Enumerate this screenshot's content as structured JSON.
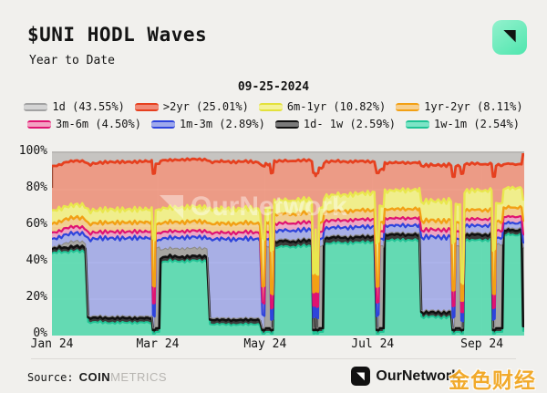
{
  "header": {
    "title": "$UNI HODL Waves",
    "subtitle": "Year to Date"
  },
  "date_label": "09-25-2024",
  "legend": {
    "rows": [
      [
        {
          "key": "1d",
          "label": "1d (43.55%)",
          "line": "#a2a2a2",
          "fill": "#d4d4d4"
        },
        {
          "key": "gt2yr",
          "label": ">2yr (25.01%)",
          "line": "#e6401f",
          "fill": "#f08a77"
        },
        {
          "key": "6m-1yr",
          "label": "6m-1yr (10.82%)",
          "line": "#e3e13c",
          "fill": "#f4f29a"
        },
        {
          "key": "1yr-2yr",
          "label": "1yr-2yr (8.11%)",
          "line": "#f2a014",
          "fill": "#f7cf8e"
        }
      ],
      [
        {
          "key": "3m-6m",
          "label": "3m-6m (4.50%)",
          "line": "#e01371",
          "fill": "#f3a2c2"
        },
        {
          "key": "1m-3m",
          "label": "1m-3m (2.89%)",
          "line": "#2e44dc",
          "fill": "#9fa9ec"
        },
        {
          "key": "1d-1w",
          "label": "1d- 1w (2.59%)",
          "line": "#111111",
          "fill": "#7a7a7a"
        },
        {
          "key": "1w-1m",
          "label": "1w-1m (2.54%)",
          "line": "#1fc394",
          "fill": "#7de4c6"
        }
      ]
    ]
  },
  "chart_data": {
    "type": "area",
    "stacked": true,
    "title": "$UNI HODL Waves",
    "subtitle": "Year to Date",
    "as_of_date": "09-25-2024",
    "watermark": "OurNetwork",
    "x_range": [
      0,
      268
    ],
    "y_range": [
      0,
      100
    ],
    "x_ticks": [
      {
        "day": 0,
        "label": "Jan 24"
      },
      {
        "day": 60,
        "label": "Mar 24"
      },
      {
        "day": 121,
        "label": "May 24"
      },
      {
        "day": 182,
        "label": "Jul 24"
      },
      {
        "day": 244,
        "label": "Sep 24"
      }
    ],
    "y_ticks": [
      {
        "pct": 0,
        "label": "0%"
      },
      {
        "pct": 20,
        "label": "20%"
      },
      {
        "pct": 40,
        "label": "40%"
      },
      {
        "pct": 60,
        "label": "60%"
      },
      {
        "pct": 80,
        "label": "80%"
      },
      {
        "pct": 100,
        "label": "100%"
      }
    ],
    "background_top_band_color": "#c6c4c1",
    "series": [
      {
        "key": "1w-1m",
        "label": "1w-1m",
        "pct_current": 2.54,
        "line": "#22c496",
        "fill": "#55d8ad",
        "fill_opacity": 0.9,
        "line_width": 2
      },
      {
        "key": "1d-1w",
        "label": "1d- 1w",
        "pct_current": 2.59,
        "line": "#101010",
        "fill": "#2d2d2d",
        "fill_opacity": 0.92,
        "line_width": 2.6
      },
      {
        "key": "1d",
        "label": "1d",
        "pct_current": 43.55,
        "line": "#8b8986",
        "fill": "#a09e9b",
        "fill_opacity": 0.92,
        "line_width": 1
      },
      {
        "key": "1m-3m",
        "label": "1m-3m",
        "pct_current": 2.89,
        "line": "#2e44dc",
        "fill": "#4a5ce4",
        "fill_opacity": 0.42,
        "line_width": 2.2
      },
      {
        "key": "3m-6m",
        "label": "3m-6m",
        "pct_current": 4.5,
        "line": "#e01371",
        "fill": "#ea3c8e",
        "fill_opacity": 0.38,
        "line_width": 2.2
      },
      {
        "key": "1yr-2yr",
        "label": "1yr-2yr",
        "pct_current": 8.11,
        "line": "#f2a014",
        "fill": "#f5b13c",
        "fill_opacity": 0.5,
        "line_width": 2.4
      },
      {
        "key": "6m-1yr",
        "label": "6m-1yr",
        "pct_current": 10.82,
        "line": "#e9e74e",
        "fill": "#f1ef6e",
        "fill_opacity": 0.75,
        "line_width": 2.4
      },
      {
        "key": ">2yr",
        "label": ">2yr",
        "pct_current": 25.01,
        "line": "#e6401f",
        "fill": "#ec6a4b",
        "fill_opacity": 0.62,
        "line_width": 2.8
      }
    ],
    "columns": [
      "day",
      "1w-1m",
      "1d-1w",
      "1d",
      "1m-3m",
      "3m-6m",
      "1yr-2yr",
      "6m-1yr",
      ">2yr"
    ],
    "samples": [
      [
        0,
        45.0,
        2.5,
        0.8,
        4.5,
        3.5,
        5.0,
        7.0,
        24.5
      ],
      [
        4,
        46.0,
        2.6,
        0.8,
        4.3,
        3.4,
        5.1,
        7.2,
        24.0
      ],
      [
        8,
        45.5,
        2.4,
        2.8,
        4.6,
        3.6,
        4.9,
        6.8,
        24.5
      ],
      [
        13,
        46.5,
        2.5,
        3.0,
        4.4,
        3.5,
        5.0,
        7.0,
        24.0
      ],
      [
        19,
        45.8,
        2.6,
        2.6,
        4.5,
        3.4,
        5.2,
        7.1,
        24.2
      ],
      [
        20.5,
        7.0,
        2.5,
        1.0,
        42.0,
        3.5,
        5.0,
        7.2,
        25.5
      ],
      [
        26,
        7.5,
        2.4,
        1.0,
        42.5,
        3.4,
        5.1,
        7.0,
        25.8
      ],
      [
        33,
        6.8,
        2.6,
        1.0,
        43.0,
        3.5,
        5.0,
        7.3,
        26.0
      ],
      [
        40,
        7.2,
        2.5,
        1.0,
        42.6,
        3.6,
        5.1,
        7.0,
        26.2
      ],
      [
        47,
        6.9,
        2.5,
        1.0,
        43.2,
        3.4,
        5.0,
        7.2,
        26.0
      ],
      [
        53,
        7.3,
        2.4,
        1.0,
        42.8,
        3.5,
        5.2,
        7.1,
        26.3
      ],
      [
        56.6,
        7.0,
        2.5,
        1.0,
        43.0,
        3.5,
        5.0,
        7.0,
        26.5
      ],
      [
        57.3,
        1.0,
        2.0,
        1.0,
        7.0,
        7.0,
        9.0,
        26.0,
        36.0
      ],
      [
        58.3,
        1.0,
        2.0,
        1.0,
        7.0,
        7.0,
        9.0,
        26.0,
        36.0
      ],
      [
        58.9,
        2.0,
        2.0,
        44.0,
        4.0,
        4.0,
        5.0,
        8.0,
        25.0
      ],
      [
        60.9,
        2.0,
        2.0,
        44.0,
        4.0,
        4.0,
        5.0,
        8.0,
        25.0
      ],
      [
        61.6,
        40.0,
        2.5,
        4.5,
        6.0,
        3.5,
        5.0,
        8.0,
        26.5
      ],
      [
        67,
        41.0,
        2.6,
        4.3,
        5.8,
        3.6,
        5.1,
        7.8,
        26.0
      ],
      [
        74,
        40.5,
        2.4,
        4.6,
        6.1,
        3.4,
        5.0,
        8.1,
        26.3
      ],
      [
        81,
        41.2,
        2.5,
        4.4,
        6.0,
        3.5,
        5.2,
        8.0,
        26.0
      ],
      [
        88,
        40.6,
        2.5,
        4.5,
        6.0,
        3.5,
        5.0,
        8.0,
        26.2
      ],
      [
        89.6,
        6.0,
        2.5,
        1.0,
        43.0,
        3.5,
        5.0,
        8.0,
        26.0
      ],
      [
        96,
        6.3,
        2.4,
        1.0,
        43.5,
        3.4,
        5.1,
        8.1,
        25.8
      ],
      [
        103,
        5.8,
        2.6,
        1.0,
        43.2,
        3.5,
        5.0,
        8.0,
        26.0
      ],
      [
        110,
        6.2,
        2.5,
        1.0,
        43.6,
        3.6,
        5.1,
        7.9,
        25.7
      ],
      [
        118,
        6.0,
        2.5,
        1.0,
        43.3,
        3.5,
        5.0,
        8.0,
        25.5
      ],
      [
        119.4,
        1.0,
        2.0,
        1.0,
        7.0,
        7.0,
        9.0,
        26.0,
        40.0
      ],
      [
        120.6,
        1.0,
        2.0,
        1.0,
        7.0,
        7.0,
        9.0,
        26.0,
        40.0
      ],
      [
        121.3,
        2.0,
        2.0,
        45.0,
        4.0,
        4.0,
        5.0,
        8.0,
        24.0
      ],
      [
        123.6,
        2.0,
        2.0,
        45.0,
        4.0,
        4.0,
        5.0,
        8.0,
        24.0
      ],
      [
        124.3,
        1.0,
        2.0,
        1.0,
        5.0,
        6.0,
        8.0,
        24.0,
        42.0
      ],
      [
        125.3,
        1.0,
        2.0,
        1.0,
        5.0,
        6.0,
        8.0,
        24.0,
        42.0
      ],
      [
        126.2,
        48.0,
        3.0,
        1.0,
        5.0,
        4.0,
        5.0,
        7.5,
        22.0
      ],
      [
        131,
        49.0,
        3.1,
        1.0,
        4.8,
        4.0,
        5.1,
        7.4,
        21.5
      ],
      [
        137,
        48.5,
        2.9,
        1.0,
        5.1,
        3.9,
        5.0,
        7.6,
        21.8
      ],
      [
        143,
        49.2,
        3.0,
        1.0,
        4.9,
        4.1,
        5.1,
        7.5,
        21.4
      ],
      [
        147.5,
        49.0,
        3.0,
        1.0,
        5.0,
        4.0,
        5.0,
        7.5,
        21.5
      ],
      [
        148.3,
        1.0,
        2.0,
        1.0,
        6.0,
        6.0,
        8.0,
        10.0,
        55.0
      ],
      [
        149.1,
        1.0,
        2.0,
        1.0,
        6.0,
        6.0,
        8.0,
        10.0,
        55.0
      ],
      [
        149.6,
        30.0,
        2.5,
        1.0,
        5.0,
        4.5,
        6.0,
        8.0,
        30.0
      ],
      [
        150.2,
        1.0,
        2.0,
        1.0,
        6.0,
        6.0,
        8.0,
        10.0,
        55.0
      ],
      [
        151.0,
        1.0,
        2.0,
        1.0,
        6.0,
        6.0,
        8.0,
        10.0,
        55.0
      ],
      [
        151.6,
        2.0,
        2.0,
        45.0,
        4.0,
        4.0,
        5.0,
        8.0,
        22.0
      ],
      [
        153.8,
        2.0,
        2.0,
        45.0,
        4.0,
        4.0,
        5.0,
        8.0,
        22.0
      ],
      [
        154.4,
        50.0,
        3.0,
        1.0,
        4.5,
        4.0,
        5.0,
        8.5,
        19.0
      ],
      [
        161,
        51.0,
        3.1,
        1.0,
        4.4,
        3.9,
        5.1,
        8.8,
        18.5
      ],
      [
        168,
        50.5,
        2.9,
        1.0,
        4.6,
        4.0,
        5.0,
        9.0,
        18.2
      ],
      [
        175,
        51.2,
        3.0,
        1.0,
        4.5,
        4.1,
        5.1,
        9.2,
        17.6
      ],
      [
        183,
        51.0,
        3.0,
        1.0,
        4.5,
        4.0,
        5.0,
        9.6,
        17.0
      ],
      [
        184.3,
        1.0,
        2.0,
        1.0,
        7.0,
        7.0,
        9.0,
        24.0,
        38.0
      ],
      [
        185.4,
        1.0,
        2.0,
        1.0,
        7.0,
        7.0,
        9.0,
        24.0,
        38.0
      ],
      [
        186.0,
        2.0,
        2.0,
        45.0,
        4.0,
        4.0,
        5.0,
        9.0,
        20.0
      ],
      [
        188.2,
        2.0,
        2.0,
        45.0,
        4.0,
        4.0,
        5.0,
        9.0,
        20.0
      ],
      [
        188.9,
        52.0,
        3.0,
        1.0,
        4.0,
        4.0,
        5.0,
        10.0,
        15.5
      ],
      [
        195,
        52.5,
        3.1,
        1.0,
        3.9,
        3.9,
        5.1,
        10.2,
        15.2
      ],
      [
        202,
        52.2,
        2.9,
        1.0,
        4.1,
        4.0,
        5.0,
        10.4,
        15.0
      ],
      [
        208.5,
        52.5,
        3.0,
        1.0,
        4.0,
        4.0,
        5.1,
        10.5,
        14.8
      ],
      [
        209.6,
        10.0,
        2.5,
        1.0,
        40.0,
        4.0,
        5.0,
        10.5,
        20.0
      ],
      [
        215,
        10.5,
        2.4,
        1.0,
        40.5,
        3.9,
        5.1,
        10.6,
        19.6
      ],
      [
        221,
        9.8,
        2.6,
        1.0,
        40.2,
        4.0,
        5.0,
        10.8,
        19.8
      ],
      [
        226.5,
        10.2,
        2.5,
        1.0,
        40.4,
        4.0,
        5.1,
        11.0,
        19.5
      ],
      [
        227.4,
        1.0,
        2.0,
        1.0,
        6.0,
        6.0,
        9.0,
        26.0,
        36.0
      ],
      [
        228.4,
        1.0,
        2.0,
        1.0,
        6.0,
        6.0,
        9.0,
        26.0,
        36.0
      ],
      [
        229.1,
        2.0,
        2.0,
        45.0,
        4.0,
        4.0,
        5.0,
        10.0,
        21.0
      ],
      [
        231.6,
        2.0,
        2.0,
        45.0,
        4.0,
        4.0,
        5.0,
        10.0,
        21.0
      ],
      [
        232.3,
        1.0,
        2.0,
        1.0,
        4.0,
        5.0,
        6.0,
        10.0,
        60.0
      ],
      [
        233.3,
        1.0,
        2.0,
        1.0,
        4.0,
        5.0,
        6.0,
        10.0,
        60.0
      ],
      [
        234.1,
        52.0,
        3.0,
        1.0,
        4.0,
        3.5,
        5.0,
        10.5,
        15.0
      ],
      [
        240,
        52.5,
        3.1,
        1.0,
        3.9,
        3.6,
        5.1,
        10.6,
        14.6
      ],
      [
        246,
        52.2,
        2.9,
        1.0,
        4.1,
        3.5,
        5.0,
        10.8,
        14.4
      ],
      [
        249.5,
        52.4,
        3.0,
        1.0,
        4.0,
        3.5,
        5.0,
        10.8,
        14.5
      ],
      [
        250.3,
        1.0,
        2.0,
        1.0,
        5.0,
        6.0,
        8.0,
        24.0,
        40.0
      ],
      [
        251.3,
        1.0,
        2.0,
        1.0,
        5.0,
        6.0,
        8.0,
        24.0,
        40.0
      ],
      [
        252.0,
        2.0,
        2.0,
        46.0,
        3.5,
        4.0,
        5.0,
        10.0,
        21.0
      ],
      [
        255.6,
        2.0,
        2.0,
        46.0,
        3.5,
        4.0,
        5.0,
        10.0,
        21.0
      ],
      [
        256.3,
        55.0,
        2.5,
        1.0,
        3.0,
        3.5,
        5.0,
        10.5,
        13.5
      ],
      [
        260,
        55.5,
        2.6,
        1.0,
        2.9,
        3.4,
        5.1,
        10.6,
        13.2
      ],
      [
        263,
        55.0,
        2.5,
        1.0,
        3.0,
        3.5,
        5.0,
        10.8,
        13.0
      ],
      [
        266.5,
        55.3,
        2.5,
        1.0,
        3.0,
        3.5,
        5.0,
        10.8,
        13.0
      ],
      [
        267.4,
        2.54,
        2.59,
        43.55,
        2.89,
        4.5,
        8.11,
        10.82,
        25.01
      ],
      [
        268,
        2.54,
        2.59,
        43.55,
        2.89,
        4.5,
        8.11,
        10.82,
        25.01
      ]
    ]
  },
  "footer": {
    "source_prefix": "Source:",
    "source_brand_bold": "COIN",
    "source_brand_light": "METRICS",
    "brand": "OurNetwork",
    "watermark_cn": "金色财经"
  }
}
